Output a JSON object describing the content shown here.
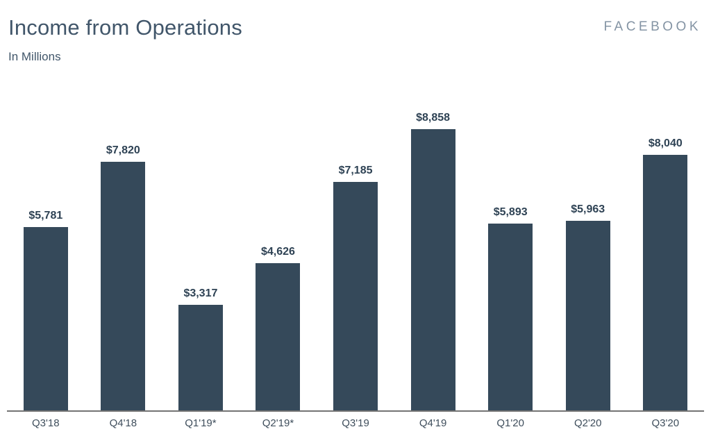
{
  "header": {
    "title": "Income from Operations",
    "subtitle": "In Millions",
    "brand": "FACEBOOK"
  },
  "chart_data": {
    "type": "bar",
    "title": "Income from Operations",
    "subtitle": "In Millions",
    "xlabel": "",
    "ylabel": "",
    "categories": [
      "Q3'18",
      "Q4'18",
      "Q1'19*",
      "Q2'19*",
      "Q3'19",
      "Q4'19",
      "Q1'20",
      "Q2'20",
      "Q3'20"
    ],
    "values": [
      5781,
      7820,
      3317,
      4626,
      7185,
      8858,
      5893,
      5963,
      8040
    ],
    "value_labels": [
      "$5,781",
      "$7,820",
      "$3,317",
      "$4,626",
      "$7,185",
      "$8,858",
      "$5,893",
      "$5,963",
      "$8,040"
    ],
    "ylim": [
      0,
      8858
    ],
    "grid": false,
    "legend": false,
    "bar_color": "#35495A",
    "value_label_color": "#2E4254",
    "tick_label_color": "#3F4E5C",
    "axis_line_color": "#737373",
    "title_color": "#41566A",
    "brand_color": "#8494A4"
  }
}
